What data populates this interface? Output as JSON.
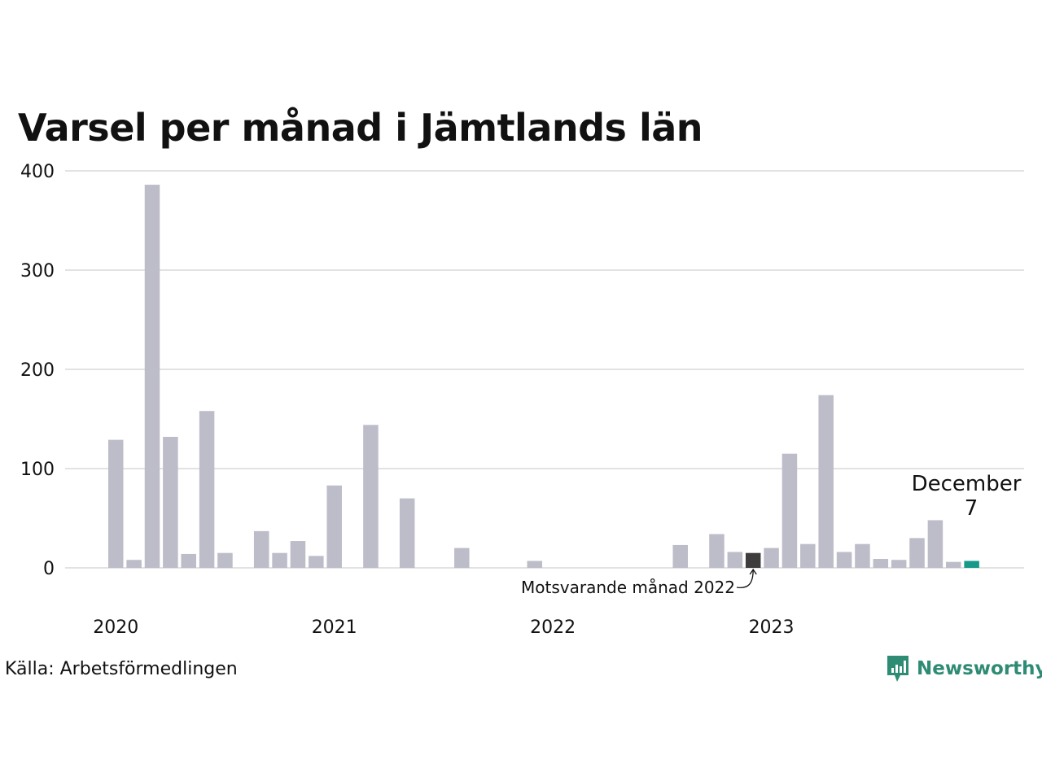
{
  "title": "Varsel per månad i Jämtlands län",
  "source": "Källa: Arbetsförmedlingen",
  "logo": {
    "text": "Newsworthy",
    "icon": "bar-chart-logo-icon"
  },
  "colors": {
    "bar": "#bdbcc9",
    "comparison": "#3d3d3d",
    "current": "#17998a",
    "grid": "#e2e2e2",
    "logo": "#2e8b74"
  },
  "annotations": {
    "comparison_label": "Motsvarande månad 2022",
    "highlight_month": "December",
    "highlight_value": "7"
  },
  "chart_data": {
    "type": "bar",
    "title": "Varsel per månad i Jämtlands län",
    "ylim": [
      0,
      400
    ],
    "yticks": [
      0,
      100,
      200,
      300,
      400
    ],
    "grid": true,
    "x_year_labels": [
      "2020",
      "2021",
      "2022",
      "2023"
    ],
    "months": [
      "2020-01",
      "2020-02",
      "2020-03",
      "2020-04",
      "2020-05",
      "2020-06",
      "2020-07",
      "2020-08",
      "2020-09",
      "2020-10",
      "2020-11",
      "2020-12",
      "2021-01",
      "2021-02",
      "2021-03",
      "2021-04",
      "2021-05",
      "2021-06",
      "2021-07",
      "2021-08",
      "2021-09",
      "2021-10",
      "2021-11",
      "2021-12",
      "2022-01",
      "2022-02",
      "2022-03",
      "2022-04",
      "2022-05",
      "2022-06",
      "2022-07",
      "2022-08",
      "2022-09",
      "2022-10",
      "2022-11",
      "2022-12",
      "2023-01",
      "2023-02",
      "2023-03",
      "2023-04",
      "2023-05",
      "2023-06",
      "2023-07",
      "2023-08",
      "2023-09",
      "2023-10",
      "2023-11",
      "2023-12"
    ],
    "values": [
      129,
      8,
      386,
      132,
      14,
      158,
      15,
      0,
      37,
      15,
      27,
      12,
      83,
      0,
      144,
      0,
      70,
      0,
      0,
      20,
      0,
      0,
      0,
      7,
      0,
      0,
      0,
      0,
      0,
      0,
      0,
      23,
      0,
      34,
      16,
      15,
      20,
      115,
      24,
      174,
      16,
      24,
      9,
      8,
      30,
      48,
      6,
      7
    ],
    "comparison_month": "2022-12",
    "current_month": "2023-12"
  }
}
